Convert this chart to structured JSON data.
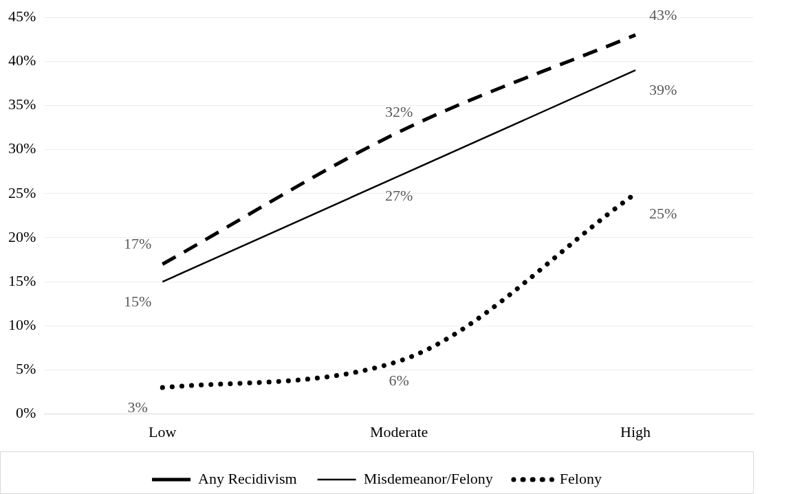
{
  "chart_data": {
    "type": "line",
    "categories": [
      "Low",
      "Moderate",
      "High"
    ],
    "series": [
      {
        "name": "Any Recidivism",
        "color": "#000000",
        "line_style": "dashed",
        "values": [
          17,
          32,
          43
        ],
        "value_labels": [
          "17%",
          "32%",
          "43%"
        ]
      },
      {
        "name": "Misdemeanor/Felony",
        "color": "#000000",
        "line_style": "solid",
        "values": [
          15,
          27,
          39
        ],
        "value_labels": [
          "15%",
          "27%",
          "39%"
        ]
      },
      {
        "name": "Felony",
        "color": "#000000",
        "line_style": "dotted",
        "values": [
          3,
          6,
          25
        ],
        "value_labels": [
          "3%",
          "6%",
          "25%"
        ]
      }
    ],
    "ylim": [
      0,
      45
    ],
    "yticks": [
      {
        "value": 0,
        "label": "0%"
      },
      {
        "value": 5,
        "label": "5%"
      },
      {
        "value": 10,
        "label": "10%"
      },
      {
        "value": 15,
        "label": "15%"
      },
      {
        "value": 20,
        "label": "20%"
      },
      {
        "value": 25,
        "label": "25%"
      },
      {
        "value": 30,
        "label": "30%"
      },
      {
        "value": 35,
        "label": "35%"
      },
      {
        "value": 40,
        "label": "40%"
      },
      {
        "value": 45,
        "label": "45%"
      }
    ],
    "grid": "y",
    "legend": "bottom",
    "marker": "none"
  }
}
